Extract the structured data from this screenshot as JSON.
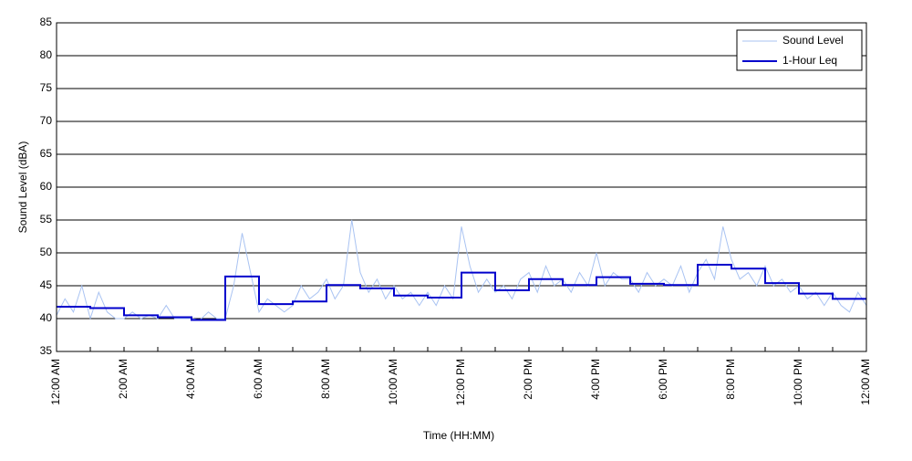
{
  "chart_data": {
    "type": "line",
    "xlabel": "Time (HH:MM)",
    "ylabel": "Sound Level (dBA)",
    "xlim": [
      0,
      24
    ],
    "ylim": [
      35,
      85
    ],
    "xticks": [
      {
        "value": 0,
        "label": "12:00 AM"
      },
      {
        "value": 2,
        "label": "2:00 AM"
      },
      {
        "value": 4,
        "label": "4:00 AM"
      },
      {
        "value": 6,
        "label": "6:00 AM"
      },
      {
        "value": 8,
        "label": "8:00 AM"
      },
      {
        "value": 10,
        "label": "10:00 AM"
      },
      {
        "value": 12,
        "label": "12:00 PM"
      },
      {
        "value": 14,
        "label": "2:00 PM"
      },
      {
        "value": 16,
        "label": "4:00 PM"
      },
      {
        "value": 18,
        "label": "6:00 PM"
      },
      {
        "value": 20,
        "label": "8:00 PM"
      },
      {
        "value": 22,
        "label": "10:00 PM"
      },
      {
        "value": 24,
        "label": "12:00 AM"
      }
    ],
    "xminorticks": [
      1,
      3,
      5,
      7,
      9,
      11,
      13,
      15,
      17,
      19,
      21,
      23
    ],
    "yticks": [
      35,
      40,
      45,
      50,
      55,
      60,
      65,
      70,
      75,
      80,
      85
    ],
    "grid": "y",
    "legend": "upper right",
    "series": [
      {
        "name": "Sound Level",
        "color": "#a9c3f2",
        "width": 1,
        "step": false,
        "x": [
          0,
          0.25,
          0.5,
          0.75,
          1,
          1.25,
          1.5,
          1.75,
          2,
          2.25,
          2.5,
          2.75,
          3,
          3.25,
          3.5,
          3.75,
          4,
          4.25,
          4.5,
          4.75,
          5,
          5.25,
          5.5,
          5.75,
          6,
          6.25,
          6.5,
          6.75,
          7,
          7.25,
          7.5,
          7.75,
          8,
          8.25,
          8.5,
          8.75,
          9,
          9.25,
          9.5,
          9.75,
          10,
          10.25,
          10.5,
          10.75,
          11,
          11.25,
          11.5,
          11.75,
          12,
          12.25,
          12.5,
          12.75,
          13,
          13.25,
          13.5,
          13.75,
          14,
          14.25,
          14.5,
          14.75,
          15,
          15.25,
          15.5,
          15.75,
          16,
          16.25,
          16.5,
          16.75,
          17,
          17.25,
          17.5,
          17.75,
          18,
          18.25,
          18.5,
          18.75,
          19,
          19.25,
          19.5,
          19.75,
          20,
          20.25,
          20.5,
          20.75,
          21,
          21.25,
          21.5,
          21.75,
          22,
          22.25,
          22.5,
          22.75,
          23,
          23.25,
          23.5,
          23.75,
          24
        ],
        "values": [
          40.5,
          43,
          41,
          45,
          40,
          44,
          41,
          40,
          40,
          41,
          40,
          40.5,
          40,
          42,
          40,
          40,
          40,
          39.8,
          41,
          40,
          40,
          45,
          53,
          47,
          41,
          43,
          42,
          41,
          42,
          45,
          43,
          44,
          46,
          43,
          45,
          55,
          47,
          44,
          46,
          43,
          45,
          43,
          44,
          42,
          44,
          42,
          45,
          43,
          54,
          48,
          44,
          46,
          44,
          45,
          43,
          46,
          47,
          44,
          48,
          45,
          46,
          44,
          47,
          45,
          50,
          45,
          47,
          46,
          46,
          44,
          47,
          45,
          46,
          45,
          48,
          44,
          47,
          49,
          46,
          54,
          49,
          46,
          47,
          45,
          48,
          45,
          46,
          44,
          45,
          43,
          44,
          42,
          44,
          42,
          41,
          44,
          42
        ]
      },
      {
        "name": "1-Hour Leq",
        "color": "#0000cc",
        "width": 2,
        "step": true,
        "x": [
          0,
          1,
          2,
          3,
          4,
          5,
          6,
          7,
          8,
          9,
          10,
          11,
          12,
          13,
          14,
          15,
          16,
          17,
          18,
          19,
          20,
          21,
          22,
          23,
          24
        ],
        "values": [
          41.8,
          41.6,
          40.5,
          40.2,
          39.8,
          46.4,
          42.2,
          42.6,
          45.1,
          44.6,
          43.5,
          43.2,
          47.0,
          44.3,
          46.0,
          45.1,
          46.3,
          45.3,
          45.1,
          48.2,
          47.6,
          45.4,
          43.8,
          43.0,
          43.0
        ]
      }
    ]
  }
}
